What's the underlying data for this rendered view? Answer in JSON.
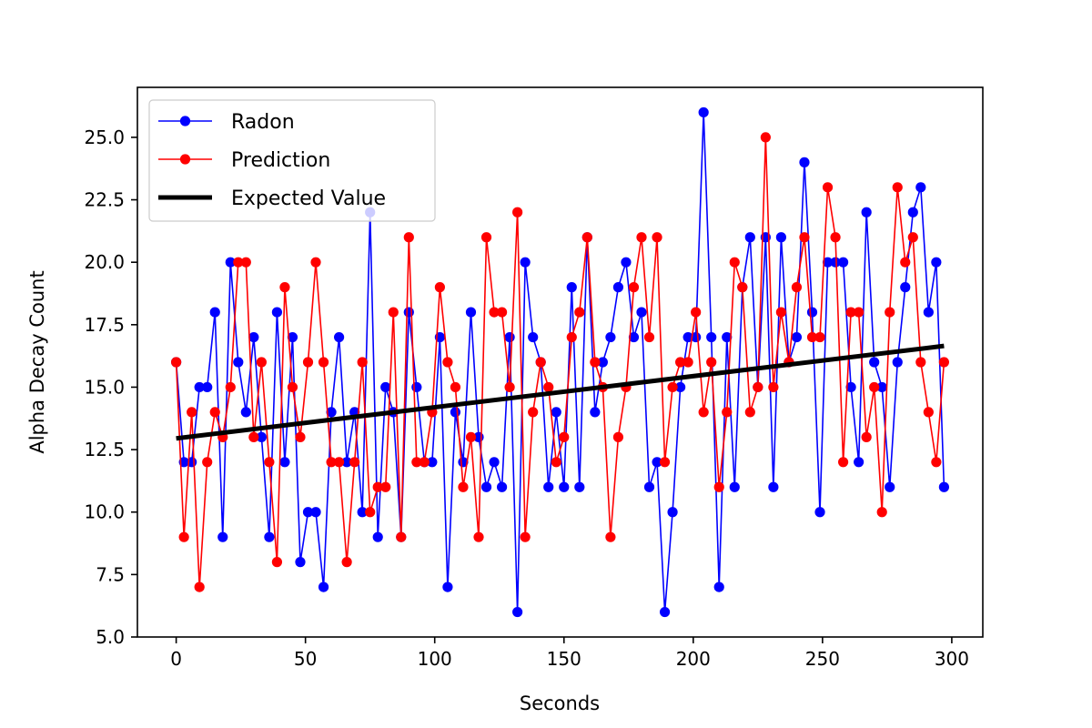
{
  "chart_data": {
    "type": "line",
    "title": "",
    "xlabel": "Seconds",
    "ylabel": "Alpha Decay Count",
    "xlim": [
      -15,
      312
    ],
    "ylim": [
      5,
      27
    ],
    "xticks": [
      0,
      50,
      100,
      150,
      200,
      250,
      300
    ],
    "yticks": [
      "5.0",
      "7.5",
      "10.0",
      "12.5",
      "15.0",
      "17.5",
      "20.0",
      "22.5",
      "25.0"
    ],
    "grid": false,
    "legend_position": "top-left",
    "x": [
      0,
      3,
      6,
      9,
      12,
      15,
      18,
      21,
      24,
      27,
      30,
      33,
      36,
      39,
      42,
      45,
      48,
      51,
      54,
      57,
      60,
      63,
      66,
      69,
      72,
      75,
      78,
      81,
      84,
      87,
      90,
      93,
      96,
      99,
      102,
      105,
      108,
      111,
      114,
      117,
      120,
      123,
      126,
      129,
      132,
      135,
      138,
      141,
      144,
      147,
      150,
      153,
      156,
      159,
      162,
      165,
      168,
      171,
      174,
      177,
      180,
      183,
      186,
      189,
      192,
      195,
      198,
      201,
      204,
      207,
      210,
      213,
      216,
      219,
      222,
      225,
      228,
      231,
      234,
      237,
      240,
      243,
      246,
      249,
      252,
      255,
      258,
      261,
      264,
      267,
      270,
      273,
      276,
      279,
      282,
      285,
      288,
      291,
      294,
      297
    ],
    "series": [
      {
        "name": "Radon",
        "color": "#0000ff",
        "marker": "circle",
        "values": [
          16,
          12,
          12,
          15,
          15,
          18,
          9,
          20,
          16,
          14,
          17,
          13,
          9,
          18,
          12,
          17,
          8,
          10,
          10,
          7,
          14,
          17,
          12,
          14,
          10,
          22,
          9,
          15,
          14,
          9,
          18,
          15,
          12,
          12,
          17,
          7,
          14,
          12,
          18,
          13,
          11,
          12,
          11,
          17,
          6,
          20,
          17,
          16,
          11,
          14,
          11,
          19,
          11,
          21,
          14,
          16,
          17,
          19,
          20,
          17,
          18,
          11,
          12,
          6,
          10,
          15,
          17,
          17,
          26,
          17,
          7,
          17,
          11,
          19,
          21,
          15,
          21,
          11,
          21,
          16,
          17,
          24,
          18,
          10,
          20,
          20,
          20,
          15,
          12,
          22,
          16,
          15,
          11,
          16,
          19,
          22,
          23,
          18,
          20,
          11
        ]
      },
      {
        "name": "Prediction",
        "color": "#ff0000",
        "marker": "circle",
        "values": [
          16,
          9,
          14,
          7,
          12,
          14,
          13,
          15,
          20,
          20,
          13,
          16,
          12,
          8,
          19,
          15,
          13,
          16,
          20,
          16,
          12,
          12,
          8,
          12,
          16,
          10,
          11,
          11,
          18,
          9,
          21,
          12,
          12,
          14,
          19,
          16,
          15,
          11,
          13,
          9,
          21,
          18,
          18,
          15,
          22,
          9,
          14,
          16,
          15,
          12,
          13,
          17,
          18,
          21,
          16,
          15,
          9,
          13,
          15,
          19,
          21,
          17,
          21,
          12,
          15,
          16,
          16,
          18,
          14,
          16,
          11,
          14,
          20,
          19,
          14,
          15,
          25,
          15,
          18,
          16,
          19,
          21,
          17,
          17,
          23,
          21,
          12,
          18,
          18,
          13,
          15,
          10,
          18,
          23,
          20,
          21,
          16,
          14,
          12,
          16
        ]
      },
      {
        "name": "Expected Value",
        "color": "#000000",
        "marker": "none",
        "x": [
          0,
          297
        ],
        "values": [
          12.95,
          16.65
        ]
      }
    ]
  }
}
